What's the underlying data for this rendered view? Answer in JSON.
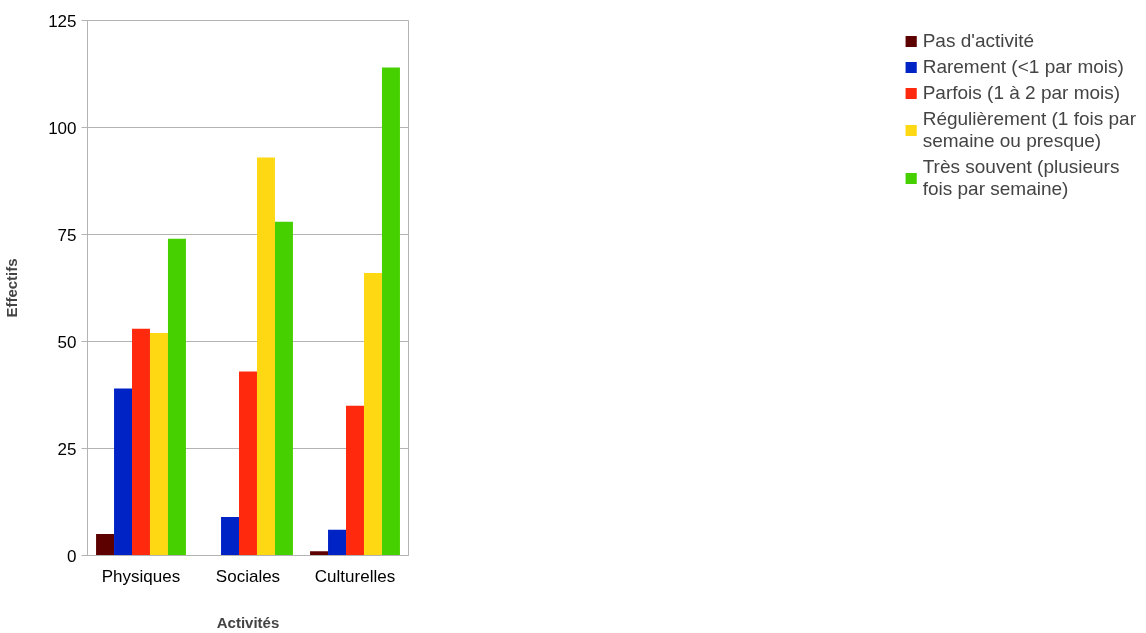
{
  "chart_data": {
    "type": "bar",
    "xlabel": "Activités",
    "ylabel": "Effectifs",
    "categories": [
      "Physiques",
      "Sociales",
      "Culturelles"
    ],
    "series": [
      {
        "name": "Pas d'activité",
        "color": "#5c0000",
        "values": [
          5,
          0,
          1
        ]
      },
      {
        "name": "Rarement (<1 par mois)",
        "color": "#0023c6",
        "values": [
          39,
          9,
          6
        ]
      },
      {
        "name": "Parfois (1 à 2 par mois)",
        "color": "#ff2a0e",
        "values": [
          53,
          43,
          35
        ]
      },
      {
        "name": "Régulièrement (1 fois par semaine ou presque)",
        "color": "#ffd814",
        "values": [
          52,
          93,
          66
        ]
      },
      {
        "name": "Très souvent (plusieurs fois par semaine)",
        "color": "#46d000",
        "values": [
          74,
          78,
          114
        ]
      }
    ],
    "ylim": [
      0,
      125
    ],
    "yticks": [
      0,
      25,
      50,
      75,
      100,
      125
    ],
    "grid": "y",
    "legend": "right"
  }
}
